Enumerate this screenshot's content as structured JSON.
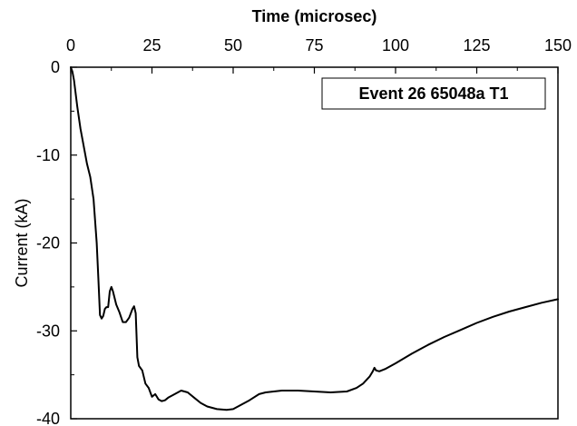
{
  "chart_data": {
    "type": "line",
    "title": "",
    "xlabel": "Time (microsec)",
    "ylabel": "Current (kA)",
    "xlim": [
      0,
      150
    ],
    "ylim": [
      -40,
      0
    ],
    "xticks": [
      "0",
      "25",
      "50",
      "75",
      "100",
      "125",
      "150"
    ],
    "yticks": [
      "0",
      "-10",
      "-20",
      "-30",
      "-40"
    ],
    "x_axis_position": "top",
    "grid": false,
    "annotation": "Event 26 65048a T1",
    "annotation_position": "top-right",
    "line_color": "#000000",
    "series": [
      {
        "x": [
          0,
          0.5,
          1,
          2,
          3,
          4,
          5,
          6,
          7,
          8,
          8.5,
          9,
          9.5,
          10,
          10.5,
          11,
          11.5,
          12,
          12.5,
          13,
          14,
          15,
          16,
          17,
          18,
          19,
          19.5,
          20,
          20.5,
          21,
          22,
          23,
          24,
          25,
          26,
          27,
          28,
          29,
          30,
          32,
          34,
          36,
          38,
          40,
          42,
          45,
          48,
          50,
          52,
          55,
          58,
          60,
          65,
          70,
          75,
          80,
          85,
          88,
          90,
          92,
          93,
          93.5,
          94,
          95,
          97,
          100,
          105,
          110,
          115,
          120,
          125,
          130,
          135,
          140,
          145,
          150
        ],
        "y": [
          0,
          -0.5,
          -1.5,
          -4.5,
          -7,
          -9,
          -11,
          -12.5,
          -15,
          -20,
          -24,
          -28.2,
          -28.6,
          -28.3,
          -27.5,
          -27.3,
          -27.3,
          -25.5,
          -25.0,
          -25.5,
          -27.0,
          -27.9,
          -29.0,
          -29.0,
          -28.5,
          -27.5,
          -27.2,
          -28.0,
          -33.0,
          -34.0,
          -34.5,
          -36.0,
          -36.5,
          -37.5,
          -37.2,
          -37.8,
          -38.0,
          -37.9,
          -37.6,
          -37.2,
          -36.8,
          -37.0,
          -37.6,
          -38.2,
          -38.6,
          -38.9,
          -39.0,
          -38.9,
          -38.5,
          -37.9,
          -37.2,
          -37.0,
          -36.8,
          -36.8,
          -36.9,
          -37.0,
          -36.9,
          -36.5,
          -36.0,
          -35.2,
          -34.6,
          -34.2,
          -34.5,
          -34.6,
          -34.3,
          -33.7,
          -32.6,
          -31.6,
          -30.7,
          -29.9,
          -29.1,
          -28.4,
          -27.8,
          -27.3,
          -26.8,
          -26.4
        ]
      }
    ]
  }
}
